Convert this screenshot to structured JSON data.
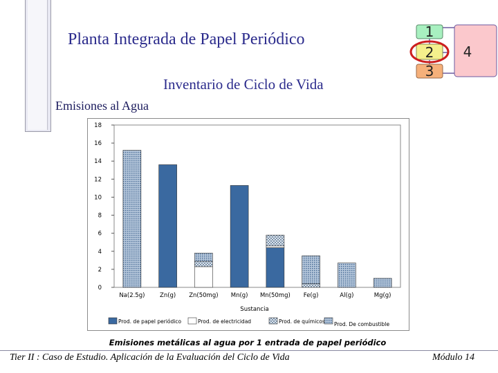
{
  "slide": {
    "title": "Planta Integrada de Papel Periódico",
    "subtitle": "Inventario de Ciclo de Vida",
    "section": "Emisiones al Agua"
  },
  "nav": {
    "steps": [
      "1",
      "2",
      "3"
    ],
    "step4": "4",
    "colors": {
      "step1": "#a8f0c0",
      "step2": "#f4f08c",
      "step3": "#f5b07a",
      "step4": "#fbc8cc",
      "highlight": "#cc1f1f"
    }
  },
  "footer": {
    "left": "Tier II : Caso de Estudio. Aplicación de la Evaluación del Ciclo de Vida",
    "right": "Módulo 14"
  },
  "chart_data": {
    "type": "bar",
    "stacked": true,
    "caption": "Emisiones metálicas al agua por 1 entrada de papel periódico",
    "xlabel": "Sustancia",
    "ylim": [
      0,
      18
    ],
    "yticks": [
      0,
      2,
      4,
      6,
      8,
      10,
      12,
      14,
      16,
      18
    ],
    "categories": [
      "Na(2.5g)",
      "Zn(g)",
      "Zn(50mg)",
      "Mn(g)",
      "Mn(50mg)",
      "Fe(g)",
      "Al(g)",
      "Mg(g)"
    ],
    "series": [
      {
        "name": "Prod. de papel periódico",
        "color": "#3a69a0",
        "pattern": "solid",
        "values": [
          0,
          13.6,
          0,
          11.3,
          4.4,
          0,
          0,
          0
        ]
      },
      {
        "name": "Prod. de electricidad",
        "color": "#ffffff",
        "pattern": "white",
        "values": [
          0,
          0,
          2.3,
          0,
          0.2,
          0,
          0,
          0
        ]
      },
      {
        "name": "Prod. de químicos",
        "color": "#a8b8c8",
        "pattern": "checker",
        "values": [
          0,
          0,
          0.6,
          0,
          1.2,
          0.4,
          0,
          0
        ]
      },
      {
        "name": "Prod. De combustible",
        "color": "#6a8cb4",
        "pattern": "stipple",
        "values": [
          15.2,
          0,
          0.9,
          0,
          0,
          3.1,
          2.7,
          1.0
        ]
      }
    ],
    "grid": false,
    "legend_position": "bottom"
  }
}
